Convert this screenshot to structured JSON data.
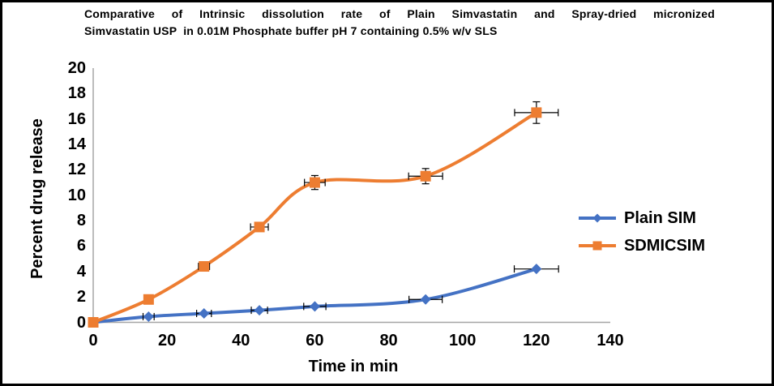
{
  "frame": {
    "border_color": "#000000",
    "background": "#FFFFFF"
  },
  "chart_data": {
    "type": "line",
    "title": "Comparative of Intrinsic dissolution rate of Plain Simvastatin and Spray-dried micronized Simvastatin USP  in 0.01M Phosphate buffer pH 7 containing 0.5% w/v SLS",
    "title_line1": "Comparative of Intrinsic dissolution rate of Plain Simvastatin and Spray-dried micronized",
    "title_line2": "Simvastatin USP  in 0.01M Phosphate buffer pH 7 containing 0.5% w/v SLS",
    "xlabel": "Time in min",
    "ylabel": "Percent drug release",
    "xlim": [
      0,
      140
    ],
    "ylim": [
      0,
      20
    ],
    "xticks": [
      0,
      20,
      40,
      60,
      80,
      100,
      120,
      140
    ],
    "yticks": [
      0,
      2,
      4,
      6,
      8,
      10,
      12,
      14,
      16,
      18,
      20
    ],
    "grid": false,
    "smooth_lines": true,
    "axis_color": "#A6A6A6",
    "error_bar_color": "#000000",
    "legend_position": "right",
    "x": [
      0,
      15,
      30,
      45,
      60,
      90,
      120
    ],
    "series": [
      {
        "name": "Plain SIM",
        "color": "#4472C4",
        "marker": "diamond",
        "values": [
          0,
          0.45,
          0.7,
          0.95,
          1.25,
          1.8,
          4.2
        ],
        "xerr": [
          0,
          1.5,
          2,
          2.2,
          3,
          4.5,
          6
        ],
        "yerr": [
          0,
          0,
          0,
          0,
          0,
          0,
          0
        ]
      },
      {
        "name": "SDMICSIM",
        "color": "#ED7D31",
        "marker": "square",
        "values": [
          0,
          1.8,
          4.4,
          7.5,
          11,
          11.5,
          16.5
        ],
        "xerr": [
          0,
          1,
          1.5,
          2.4,
          2.8,
          4.6,
          5.9
        ],
        "yerr": [
          0,
          0,
          0,
          0,
          0.55,
          0.6,
          0.85
        ]
      }
    ]
  }
}
